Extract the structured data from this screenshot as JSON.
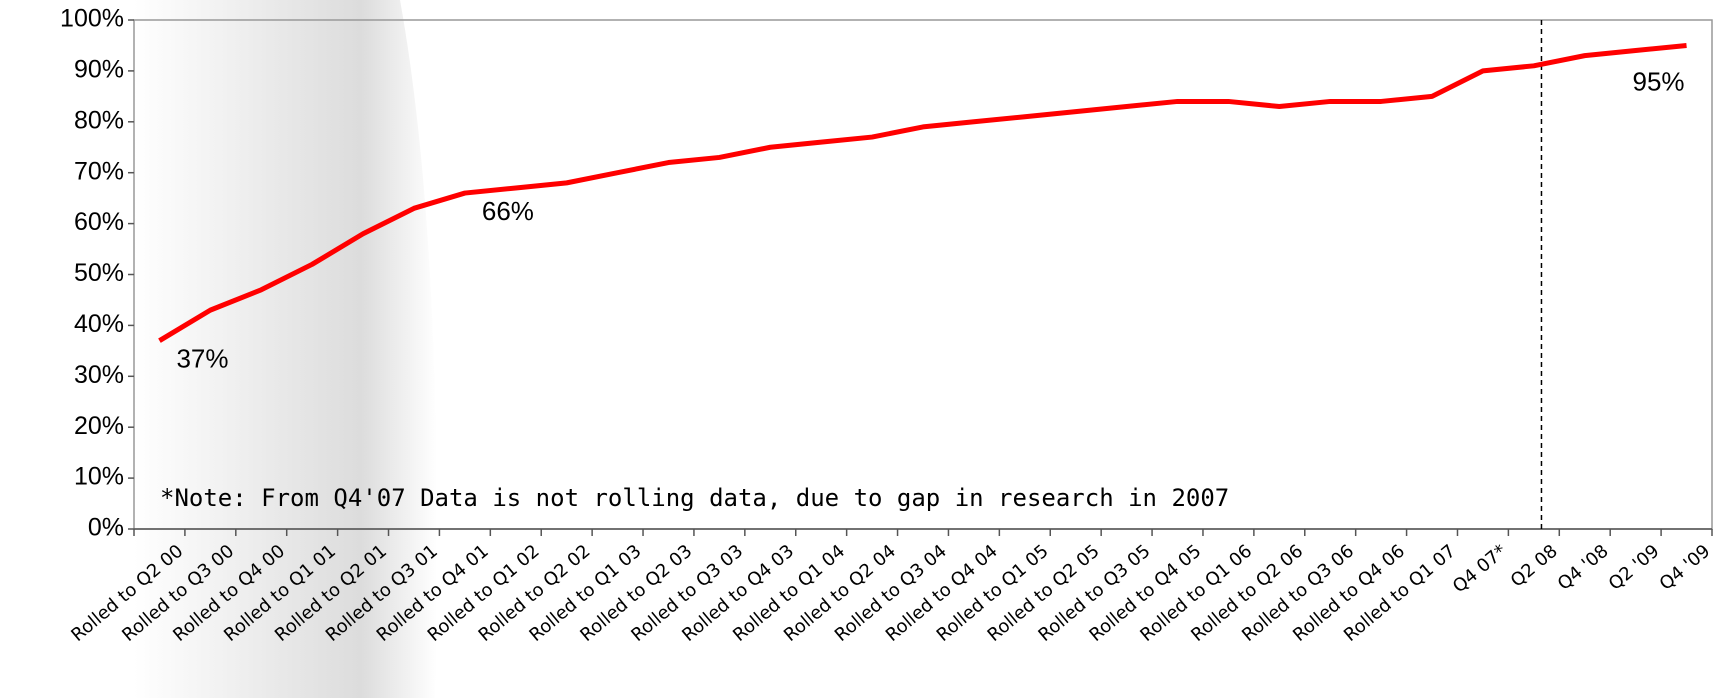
{
  "chart_data": {
    "type": "line",
    "categories": [
      "Rolled to Q2 00",
      "Rolled to Q3 00",
      "Rolled to Q4 00",
      "Rolled to Q1 01",
      "Rolled to Q2 01",
      "Rolled to Q3 01",
      "Rolled to Q4 01",
      "Rolled to Q1 02",
      "Rolled to Q2 02",
      "Rolled to Q1 03",
      "Rolled to Q2 03",
      "Rolled to Q3 03",
      "Rolled to Q4 03",
      "Rolled to Q1 04",
      "Rolled to Q2 04",
      "Rolled to Q3 04",
      "Rolled to Q4 04",
      "Rolled to Q1 05",
      "Rolled to Q2 05",
      "Rolled to Q3 05",
      "Rolled to Q4 05",
      "Rolled to Q1 06",
      "Rolled to Q2 06",
      "Rolled to Q3 06",
      "Rolled to Q4 06",
      "Rolled to Q1 07",
      "Q4 07*",
      "Q2 08",
      "Q4 '08",
      "Q2 '09",
      "Q4 '09"
    ],
    "values": [
      37,
      43,
      47,
      52,
      58,
      63,
      66,
      67,
      68,
      70,
      72,
      73,
      75,
      76,
      77,
      79,
      80,
      81,
      82,
      83,
      84,
      84,
      83,
      84,
      84,
      85,
      90,
      91,
      93,
      94,
      95
    ],
    "value_labels": [
      "37%",
      null,
      null,
      null,
      null,
      null,
      "66%",
      null,
      null,
      null,
      null,
      null,
      null,
      null,
      null,
      null,
      null,
      null,
      null,
      null,
      null,
      null,
      null,
      null,
      null,
      null,
      null,
      null,
      null,
      null,
      "95%"
    ],
    "color": "#ff0000",
    "ylim": [
      0,
      100
    ],
    "yticks": [
      {
        "value": 0,
        "label": "0%"
      },
      {
        "value": 10,
        "label": "10%"
      },
      {
        "value": 20,
        "label": "20%"
      },
      {
        "value": 30,
        "label": "30%"
      },
      {
        "value": 40,
        "label": "40%"
      },
      {
        "value": 50,
        "label": "50%"
      },
      {
        "value": 60,
        "label": "60%"
      },
      {
        "value": 70,
        "label": "70%"
      },
      {
        "value": 80,
        "label": "80%"
      },
      {
        "value": 90,
        "label": "90%"
      },
      {
        "value": 100,
        "label": "100%"
      }
    ],
    "annotation": "*Note: From Q4'07 Data is not rolling data, due to gap in research in 2007",
    "grid": false
  }
}
